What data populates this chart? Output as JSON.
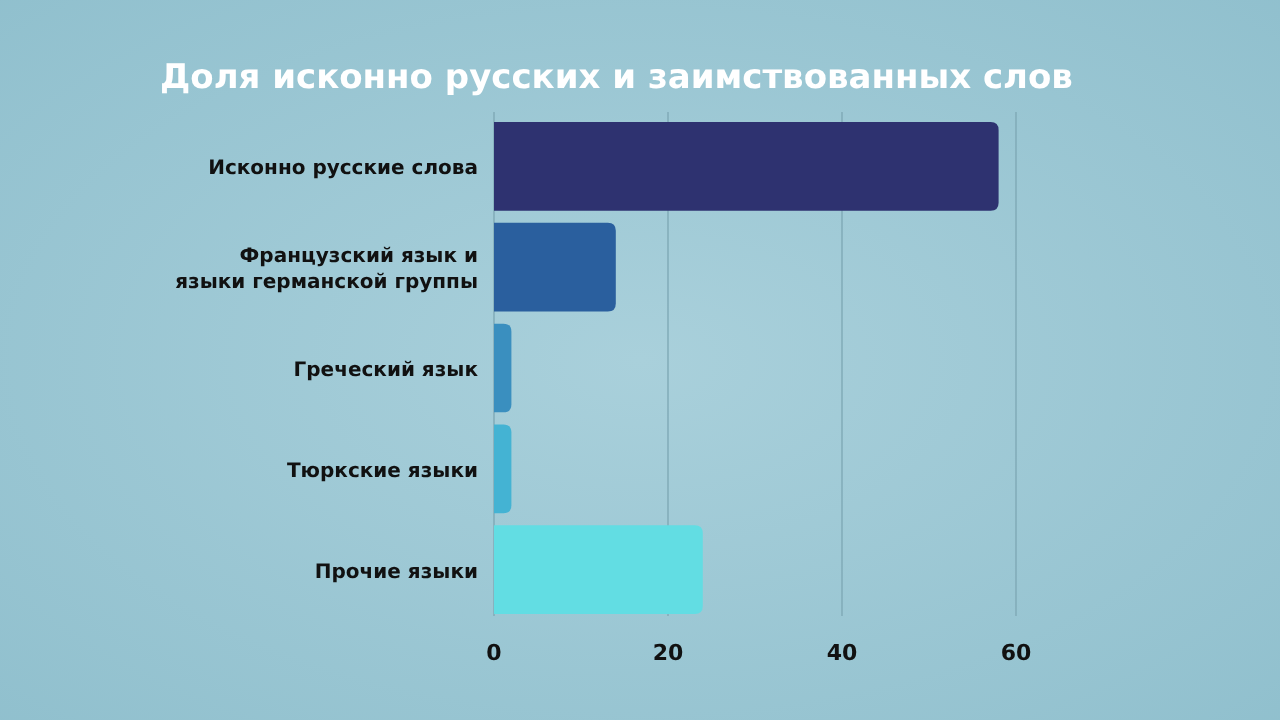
{
  "chart_data": {
    "type": "bar",
    "orientation": "horizontal",
    "title": "Доля исконно русских и заимствованных слов",
    "categories": [
      "Исконно русские слова",
      "Французский язык и языки германской группы",
      "Греческий язык",
      "Тюркские языки",
      "Прочие языки"
    ],
    "values": [
      58,
      14,
      2,
      2,
      24
    ],
    "colors": [
      "#2e3270",
      "#2a5f9e",
      "#3a8fbf",
      "#44b3d3",
      "#62dde3"
    ],
    "xlim": [
      0,
      60
    ],
    "xticks": [
      0,
      20,
      40,
      60
    ],
    "grid": "x"
  }
}
